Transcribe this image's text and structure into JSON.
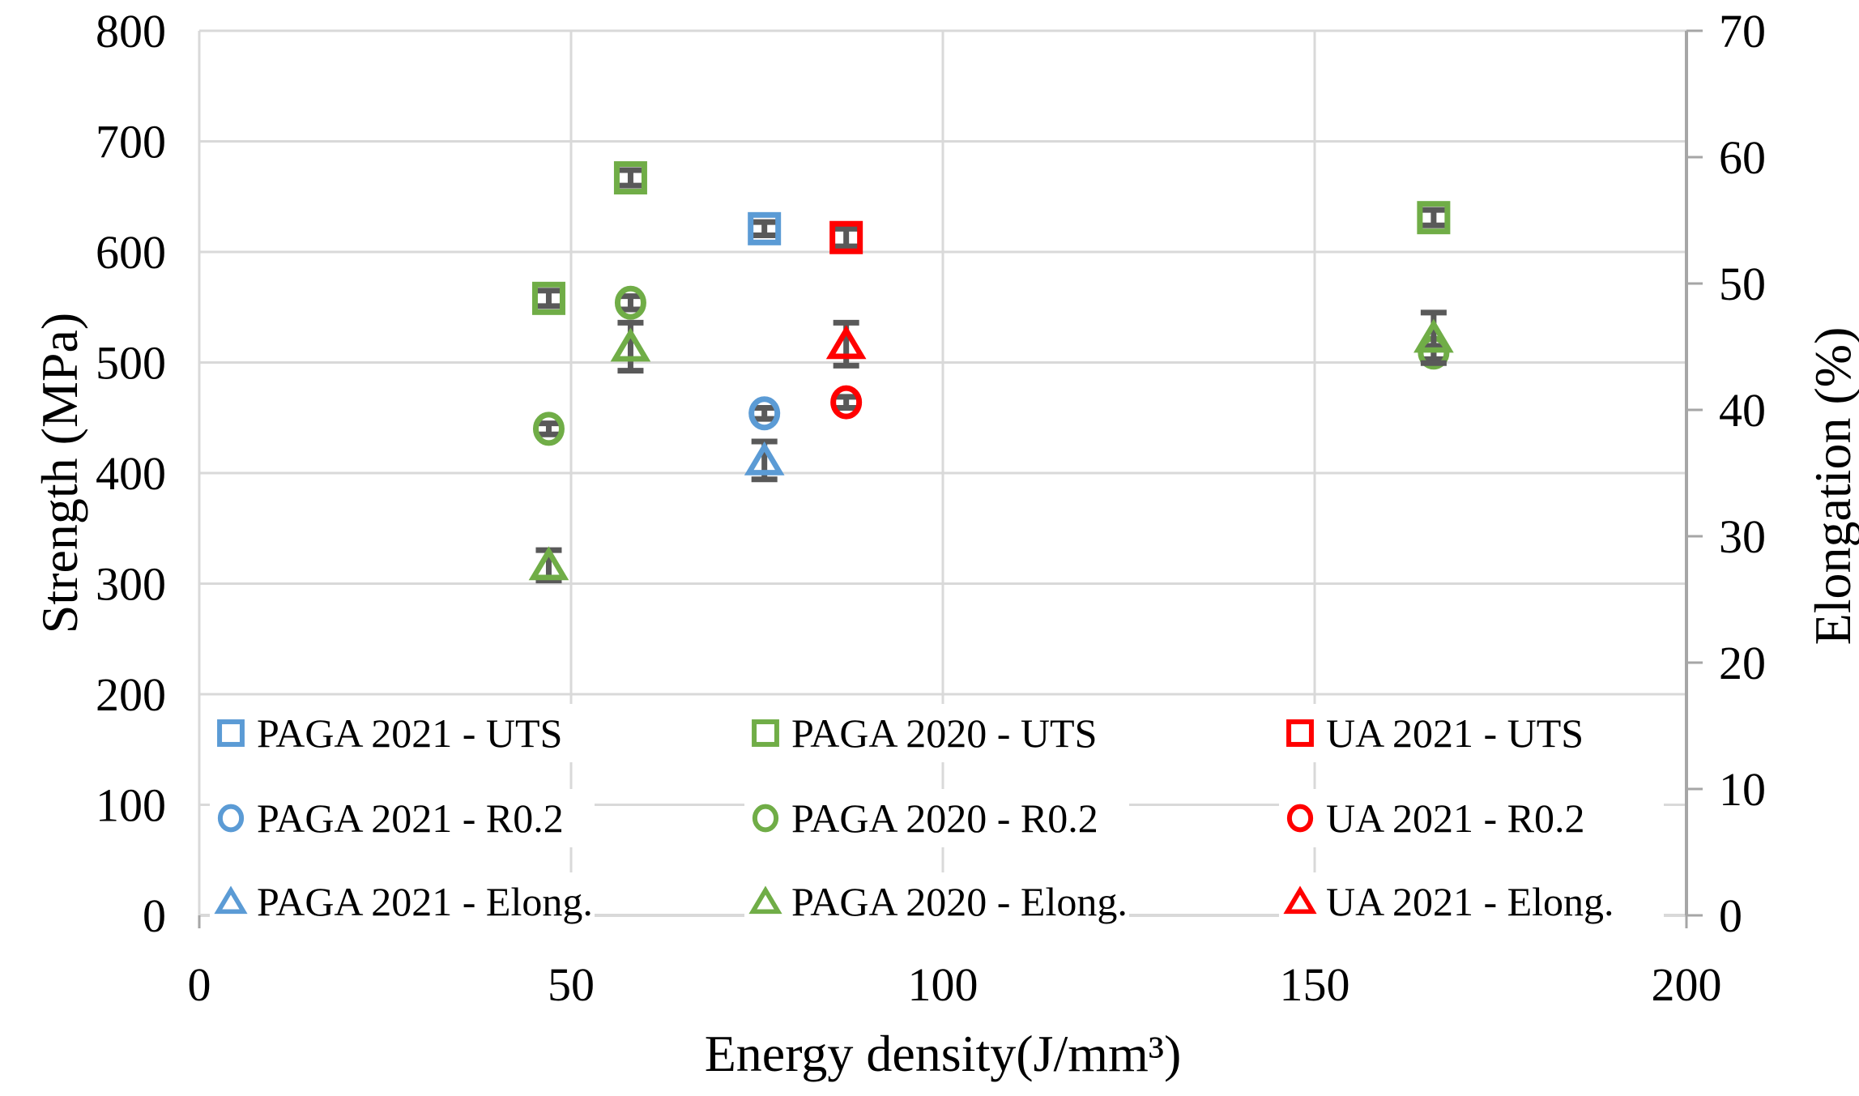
{
  "figure": {
    "background": "#ffffff",
    "description": "Scatter chart of tensile properties vs energy density with error bars"
  },
  "chart_data": {
    "type": "scatter",
    "title": "",
    "xlabel": "Energy density(J/mm³)",
    "ylabel_left": "Strength (MPa)",
    "ylabel_right": "Elongation (%)",
    "grid": true,
    "legend_position": "inside-bottom-left",
    "x_axis": {
      "min": 0,
      "max": 200,
      "ticks": [
        0,
        50,
        100,
        150,
        200
      ]
    },
    "y_left": {
      "min": 0,
      "max": 800,
      "ticks": [
        0,
        100,
        200,
        300,
        400,
        500,
        600,
        700,
        800
      ]
    },
    "y_right": {
      "min": 0,
      "max": 70,
      "ticks": [
        0,
        10,
        20,
        30,
        40,
        50,
        60,
        70
      ]
    },
    "colors": {
      "paga2021": "#5B9BD5",
      "paga2020": "#70AD47",
      "ua2021": "#FF0000",
      "error_bar": "#595959",
      "gridline": "#D9D9D9",
      "spine": "#A6A6A6"
    },
    "series": [
      {
        "name": "PAGA 2021 - UTS",
        "marker": "square",
        "color": "#5B9BD5",
        "axis": "left",
        "legend_col": 0,
        "legend_row": 0,
        "points": [
          {
            "x": 76,
            "y": 621,
            "err": 6
          }
        ]
      },
      {
        "name": "PAGA 2020 - UTS",
        "marker": "square",
        "color": "#70AD47",
        "axis": "left",
        "legend_col": 1,
        "legend_row": 0,
        "points": [
          {
            "x": 47,
            "y": 558,
            "err": 7
          },
          {
            "x": 58,
            "y": 667,
            "err": 7
          },
          {
            "x": 166,
            "y": 631,
            "err": 7
          }
        ]
      },
      {
        "name": "UA 2021 - UTS",
        "marker": "square",
        "color": "#FF0000",
        "axis": "left",
        "legend_col": 2,
        "legend_row": 0,
        "points": [
          {
            "x": 87,
            "y": 613,
            "err": 8
          }
        ]
      },
      {
        "name": "PAGA 2021 - R0.2",
        "marker": "circle",
        "color": "#5B9BD5",
        "axis": "left",
        "legend_col": 0,
        "legend_row": 1,
        "points": [
          {
            "x": 76,
            "y": 454,
            "err": 5
          }
        ]
      },
      {
        "name": "PAGA 2020 - R0.2",
        "marker": "circle",
        "color": "#70AD47",
        "axis": "left",
        "legend_col": 1,
        "legend_row": 1,
        "points": [
          {
            "x": 47,
            "y": 440,
            "err": 5
          },
          {
            "x": 58,
            "y": 554,
            "err": 6
          },
          {
            "x": 166,
            "y": 509,
            "err": 6
          }
        ]
      },
      {
        "name": "UA 2021 - R0.2",
        "marker": "circle",
        "color": "#FF0000",
        "axis": "left",
        "legend_col": 2,
        "legend_row": 1,
        "points": [
          {
            "x": 87,
            "y": 464,
            "err": 5
          }
        ]
      },
      {
        "name": "PAGA 2021 - Elong.",
        "marker": "triangle",
        "color": "#5B9BD5",
        "axis": "right",
        "legend_col": 0,
        "legend_row": 2,
        "points": [
          {
            "x": 76,
            "y": 36.0,
            "err": 1.5
          }
        ]
      },
      {
        "name": "PAGA 2020 - Elong.",
        "marker": "triangle",
        "color": "#70AD47",
        "axis": "right",
        "legend_col": 1,
        "legend_row": 2,
        "points": [
          {
            "x": 47,
            "y": 27.7,
            "err": 1.2
          },
          {
            "x": 58,
            "y": 45.0,
            "err": 1.9
          },
          {
            "x": 166,
            "y": 45.7,
            "err": 2.0
          }
        ]
      },
      {
        "name": "UA 2021 - Elong.",
        "marker": "triangle",
        "color": "#FF0000",
        "axis": "right",
        "legend_col": 2,
        "legend_row": 2,
        "points": [
          {
            "x": 87,
            "y": 45.2,
            "err": 1.7
          }
        ]
      }
    ]
  }
}
